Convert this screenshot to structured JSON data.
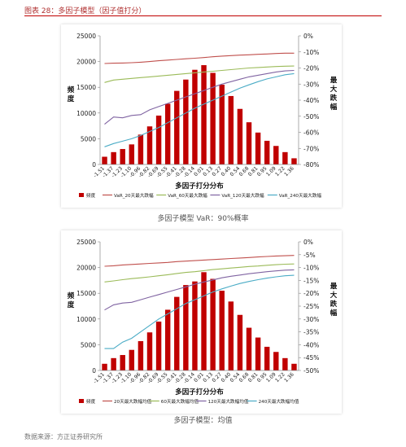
{
  "header": {
    "title": "图表 28：多因子模型（因子值打分）"
  },
  "caption1": "多因子模型 VaR：90%概率",
  "caption2": "多因子模型：均值",
  "source": "数据来源：方正证券研究所",
  "chart_data": [
    {
      "type": "bar",
      "xlabel": "多因子打分分布",
      "ylabel": "频度",
      "ylabel_right": "最大跌幅",
      "ylim": [
        0,
        25000
      ],
      "yticks": [
        "0",
        "5000",
        "10000",
        "15000",
        "20000",
        "25000"
      ],
      "ylim_right": [
        -80,
        0
      ],
      "yticks_right": [
        "0%",
        "-10%",
        "-20%",
        "-30%",
        "-40%",
        "-50%",
        "-60%",
        "-70%",
        "-80%"
      ],
      "categories": [
        "-1.51",
        "-1.37",
        "-1.23",
        "-1.10",
        "-0.96",
        "-0.82",
        "-0.69",
        "-0.55",
        "-0.41",
        "-0.28",
        "-0.14",
        "0.01",
        "0.13",
        "0.27",
        "0.40",
        "0.54",
        "0.68",
        "0.81",
        "0.95",
        "1.09",
        "1.22",
        "1.36"
      ],
      "values": [
        1500,
        2400,
        3000,
        3900,
        5800,
        7400,
        9500,
        11800,
        14300,
        16500,
        18400,
        19300,
        17800,
        15500,
        13300,
        10800,
        8200,
        6200,
        4600,
        3600,
        2400,
        1200
      ],
      "bar_color": "#c00000",
      "series": [
        {
          "name": "频度",
          "kind": "bar",
          "color": "#c00000"
        },
        {
          "name": "VaR_20天最大跌幅",
          "kind": "line",
          "color": "#c0504d",
          "values": [
            -17.2,
            -17,
            -16.9,
            -16.7,
            -16.4,
            -16,
            -15.5,
            -15.1,
            -14.7,
            -14.3,
            -13.9,
            -13.5,
            -13,
            -12.6,
            -12.3,
            -12,
            -11.8,
            -11.5,
            -11.3,
            -11,
            -10.8,
            -10.8
          ]
        },
        {
          "name": "VaR_60天最大跌幅",
          "kind": "line",
          "color": "#9bbb59",
          "values": [
            -29,
            -27.5,
            -27,
            -26.5,
            -26,
            -25.5,
            -25,
            -24.5,
            -24,
            -23.5,
            -23,
            -22.5,
            -22,
            -21.5,
            -21,
            -20.5,
            -20,
            -19.7,
            -19.4,
            -19.1,
            -18.9,
            -18.8
          ]
        },
        {
          "name": "VaR_120天最大跌幅",
          "kind": "line",
          "color": "#8064a2",
          "values": [
            -55,
            -50.5,
            -51,
            -49.5,
            -49,
            -46,
            -44,
            -42,
            -40,
            -38,
            -36,
            -34,
            -32,
            -30,
            -28.5,
            -27,
            -25.5,
            -24.5,
            -23.5,
            -22.5,
            -21.8,
            -21.5
          ]
        },
        {
          "name": "VaR_240天最大跌幅",
          "kind": "line",
          "color": "#4bacc6",
          "values": [
            -69,
            -67,
            -65.5,
            -64,
            -62,
            -59.5,
            -57,
            -54,
            -51,
            -48,
            -45,
            -42.5,
            -40,
            -37.5,
            -35,
            -32.5,
            -30.5,
            -28.5,
            -26.8,
            -25.5,
            -24.2,
            -23.5
          ]
        }
      ],
      "legend": "bottom"
    },
    {
      "type": "bar",
      "xlabel": "多因子打分分布",
      "ylabel": "频度",
      "ylabel_right": "最大跌幅",
      "ylim": [
        0,
        25000
      ],
      "yticks": [
        "0",
        "5000",
        "10000",
        "15000",
        "20000",
        "25000"
      ],
      "ylim_right": [
        -50,
        0
      ],
      "yticks_right": [
        "0%",
        "-5%",
        "-10%",
        "-15%",
        "-20%",
        "-25%",
        "-30%",
        "-35%",
        "-40%",
        "-45%",
        "-50%"
      ],
      "categories": [
        "-1.51",
        "-1.37",
        "-1.23",
        "-1.10",
        "-0.96",
        "-0.82",
        "-0.69",
        "-0.55",
        "-0.41",
        "-0.28",
        "-0.14",
        "0.01",
        "0.13",
        "0.27",
        "0.40",
        "0.54",
        "0.68",
        "0.81",
        "0.95",
        "1.09",
        "1.22",
        "1.36"
      ],
      "values": [
        1300,
        2400,
        3000,
        4000,
        5700,
        7400,
        9500,
        11800,
        14300,
        16600,
        17300,
        19100,
        17800,
        15500,
        13400,
        10800,
        8300,
        6400,
        4600,
        3600,
        2400,
        1300
      ],
      "bar_color": "#c00000",
      "series": [
        {
          "name": "频度",
          "kind": "bar",
          "color": "#c00000"
        },
        {
          "name": "20天最大跌幅均值",
          "kind": "line",
          "color": "#c0504d",
          "values": [
            -9.5,
            -9.3,
            -9,
            -8.8,
            -8.6,
            -8.4,
            -8.2,
            -8,
            -7.7,
            -7.5,
            -7.3,
            -7.1,
            -6.9,
            -6.7,
            -6.5,
            -6.3,
            -6.1,
            -5.9,
            -5.7,
            -5.5,
            -5.4,
            -5.3
          ]
        },
        {
          "name": "60天最大跌幅均值",
          "kind": "line",
          "color": "#9bbb59",
          "values": [
            -15.6,
            -15.2,
            -14.7,
            -14.3,
            -14,
            -13.6,
            -13.2,
            -12.8,
            -12.3,
            -11.9,
            -11.6,
            -11.2,
            -10.8,
            -10.5,
            -10.2,
            -9.9,
            -9.6,
            -9.4,
            -9.1,
            -8.9,
            -8.7,
            -8.6
          ]
        },
        {
          "name": "120天最大跌幅均值",
          "kind": "line",
          "color": "#8064a2",
          "values": [
            -26.5,
            -24.5,
            -23.8,
            -23.5,
            -22.5,
            -21.5,
            -20.5,
            -19.5,
            -18.5,
            -17.5,
            -16.5,
            -15.6,
            -14.8,
            -14,
            -13.4,
            -12.9,
            -12.4,
            -12,
            -11.6,
            -11.3,
            -11,
            -10.9
          ]
        },
        {
          "name": "240天最大跌幅均值",
          "kind": "line",
          "color": "#4bacc6",
          "values": [
            -41.5,
            -41.5,
            -39,
            -37.5,
            -35,
            -32.5,
            -30,
            -28,
            -26,
            -24,
            -22.5,
            -21,
            -19.5,
            -18.3,
            -17.2,
            -16.2,
            -15.4,
            -14.7,
            -14.1,
            -13.6,
            -13.2,
            -13
          ]
        }
      ],
      "legend": "bottom"
    }
  ]
}
